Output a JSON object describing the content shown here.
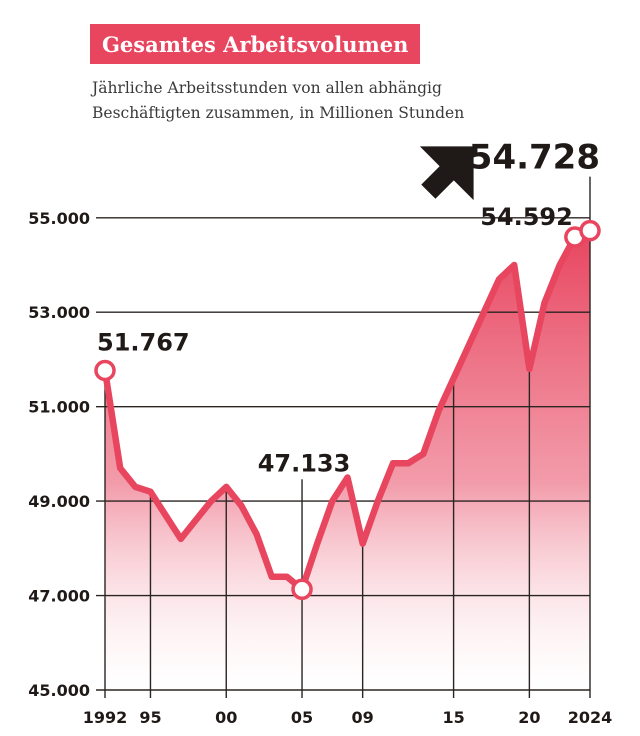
{
  "colors": {
    "accent": "#e8455f",
    "text": "#1f1a17",
    "grid": "#2b2522"
  },
  "chart_data": {
    "type": "area",
    "title": "Gesamtes Arbeitsvolumen",
    "subtitle_lines": [
      "Jährliche Arbeitsstunden von allen abhängig",
      "Beschäftigten zusammen, in Millionen Stunden"
    ],
    "xlabel": "",
    "ylabel": "",
    "ylim": [
      45000,
      55800
    ],
    "xlim": [
      1992,
      2024
    ],
    "y_ticks": [
      45000,
      47000,
      49000,
      51000,
      53000,
      55000
    ],
    "y_tick_labels": [
      "45.000",
      "47.000",
      "49.000",
      "51.000",
      "53.000",
      "55.000"
    ],
    "x_ticks": [
      1992,
      1995,
      2000,
      2005,
      2009,
      2015,
      2020,
      2024
    ],
    "x_tick_labels": [
      "1992",
      "95",
      "00",
      "05",
      "09",
      "15",
      "20",
      "2024"
    ],
    "series": [
      {
        "name": "Arbeitsvolumen",
        "x": [
          1992,
          1993,
          1994,
          1995,
          1996,
          1997,
          1998,
          1999,
          2000,
          2001,
          2002,
          2003,
          2004,
          2005,
          2006,
          2007,
          2008,
          2009,
          2010,
          2011,
          2012,
          2013,
          2014,
          2015,
          2016,
          2017,
          2018,
          2019,
          2020,
          2021,
          2022,
          2023,
          2024
        ],
        "values": [
          51767,
          49700,
          49300,
          49200,
          48700,
          48200,
          48600,
          49000,
          49300,
          48900,
          48300,
          47400,
          47400,
          47133,
          48100,
          49000,
          49500,
          48100,
          49000,
          49800,
          49800,
          50000,
          50900,
          51600,
          52300,
          53000,
          53700,
          54000,
          51800,
          53200,
          54000,
          54592,
          54728
        ]
      }
    ],
    "annotations": [
      {
        "label": "51.767",
        "x": 1992,
        "y": 51767
      },
      {
        "label": "47.133",
        "x": 2005,
        "y": 47133
      },
      {
        "label": "54.592",
        "x": 2023,
        "y": 54592
      },
      {
        "label": "54.728",
        "x": 2024,
        "y": 54728
      }
    ],
    "trend_arrow": "up"
  }
}
